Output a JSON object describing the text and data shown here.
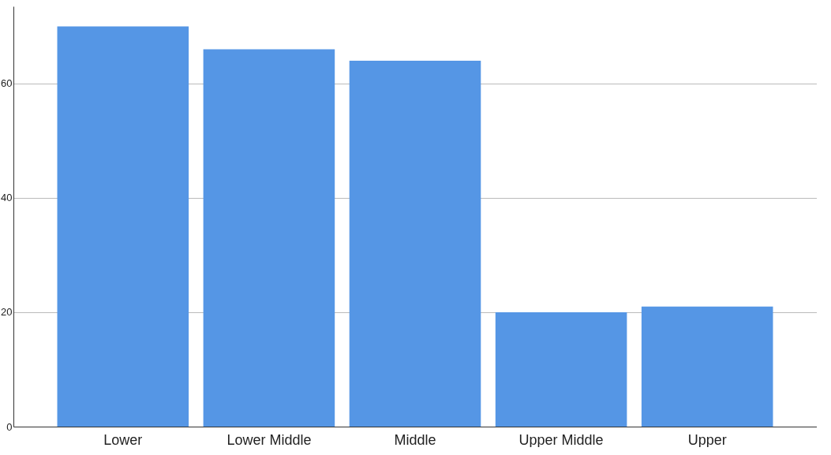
{
  "chart_data": {
    "type": "bar",
    "categories": [
      "Lower",
      "Lower Middle",
      "Middle",
      "Upper Middle",
      "Upper"
    ],
    "values": [
      70,
      66,
      64,
      20,
      21
    ],
    "color": "#5596e5",
    "ylim": [
      0,
      73.5
    ],
    "yticks": [
      0,
      20,
      40,
      60
    ],
    "grid": "y"
  }
}
